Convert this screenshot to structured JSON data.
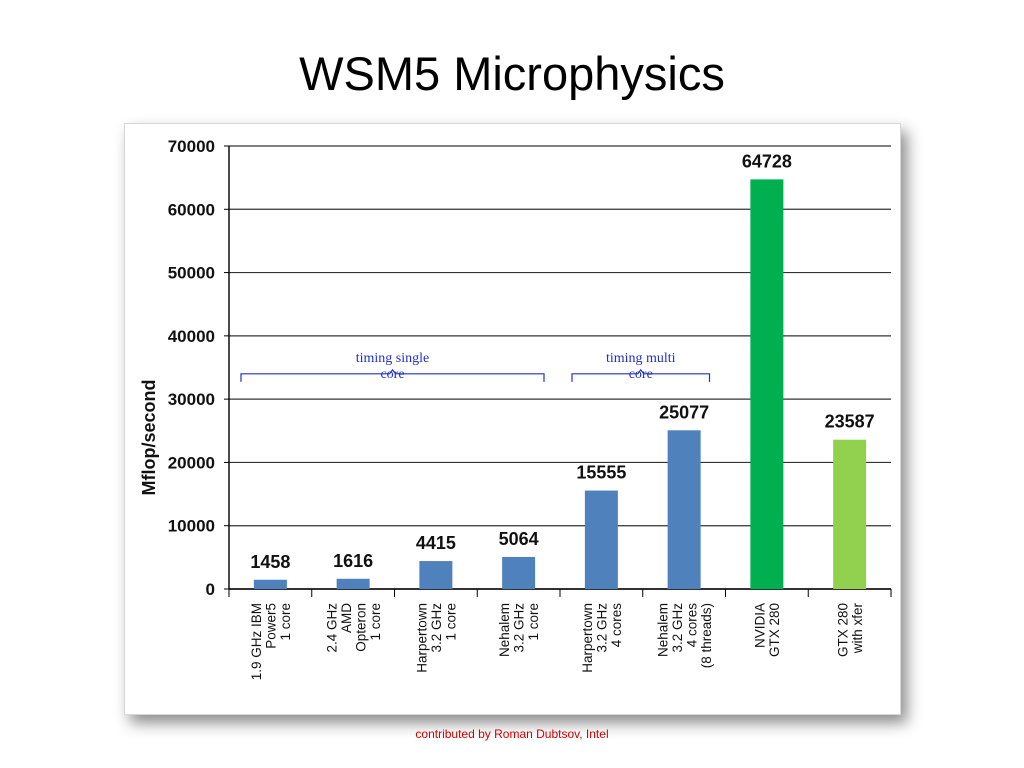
{
  "slide": {
    "title": "WSM5 Microphysics",
    "credit": "contributed  by Roman Dubtsov,  Intel"
  },
  "chart_data": {
    "type": "bar",
    "title": "",
    "xlabel": "",
    "ylabel": "Mflop/second",
    "ylim": [
      0,
      70000
    ],
    "yticks": [
      0,
      10000,
      20000,
      30000,
      40000,
      50000,
      60000,
      70000
    ],
    "grid": true,
    "categories": [
      [
        "1.9 GHz IBM",
        "Power5",
        "1 core"
      ],
      [
        "2.4 GHz",
        "AMD",
        "Opteron",
        "1 core"
      ],
      [
        "Harpertown",
        "3.2 GHz",
        "1 core"
      ],
      [
        "Nehalem",
        "3.2 GHz",
        "1 core"
      ],
      [
        "Harpertown",
        "3.2 GHz",
        "4 cores"
      ],
      [
        "Nehalem",
        "3.2 GHz",
        "4 cores",
        "(8 threads)"
      ],
      [
        "NVIDIA",
        "GTX 280"
      ],
      [
        "GTX 280",
        "with xfer"
      ]
    ],
    "values": [
      1458,
      1616,
      4415,
      5064,
      15555,
      25077,
      64728,
      23587
    ],
    "bar_colors": [
      "#4f81bd",
      "#4f81bd",
      "#4f81bd",
      "#4f81bd",
      "#4f81bd",
      "#4f81bd",
      "#00b050",
      "#92d050"
    ],
    "annotations": [
      {
        "text": [
          "timing single",
          "core"
        ],
        "from_category": 0,
        "to_category": 3,
        "y": 34000
      },
      {
        "text": [
          "timing multi",
          "core"
        ],
        "from_category": 4,
        "to_category": 5,
        "y": 34000
      }
    ],
    "axis_color": "#000000",
    "annotation_color": "#2230c8"
  }
}
